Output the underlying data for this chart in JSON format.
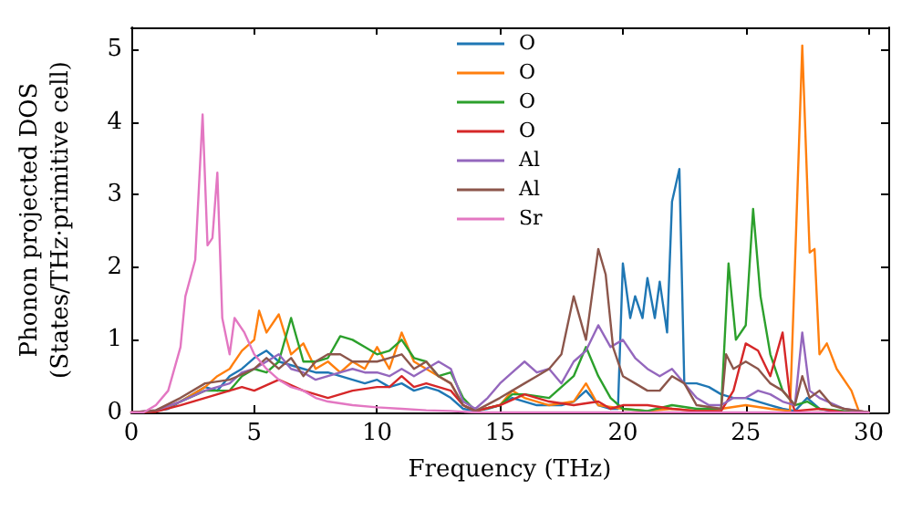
{
  "chart_data": {
    "type": "line",
    "xlabel": "Frequency (THz)",
    "ylabel": "Phonon projected DOS\n(States/THz·primitive cell)",
    "xlim": [
      0,
      30.8
    ],
    "xticks": [
      0,
      5,
      10,
      15,
      20,
      25,
      30
    ],
    "ylim": [
      0,
      5.3
    ],
    "yticks": [
      0,
      1,
      2,
      3,
      4,
      5
    ],
    "grid": false,
    "legend": "top",
    "marker": "none",
    "line_style": "solid",
    "series": [
      {
        "name": "O",
        "color": "#1f77b4",
        "x": [
          0,
          1,
          1.5,
          2,
          2.5,
          3,
          3.5,
          4,
          4.5,
          5,
          5.5,
          6,
          6.5,
          7,
          7.5,
          8,
          8.5,
          9,
          9.5,
          10,
          10.5,
          11,
          11.5,
          12,
          12.5,
          13,
          13.5,
          14,
          14.5,
          15,
          15.5,
          16,
          16.5,
          17,
          17.5,
          18,
          18.5,
          19,
          19.5,
          19.8,
          20,
          20.3,
          20.5,
          20.8,
          21,
          21.3,
          21.5,
          21.8,
          22,
          22.3,
          22.5,
          23,
          23.5,
          24,
          24.5,
          25,
          25.5,
          26,
          26.5,
          27,
          27.5,
          28,
          28.5
        ],
        "values": [
          0,
          0.02,
          0.05,
          0.15,
          0.25,
          0.35,
          0.3,
          0.5,
          0.6,
          0.75,
          0.85,
          0.7,
          0.65,
          0.6,
          0.55,
          0.55,
          0.5,
          0.45,
          0.4,
          0.45,
          0.35,
          0.4,
          0.3,
          0.35,
          0.3,
          0.2,
          0.05,
          0.02,
          0.05,
          0.1,
          0.2,
          0.15,
          0.1,
          0.1,
          0.1,
          0.15,
          0.3,
          0.1,
          0.05,
          0.05,
          2.05,
          1.3,
          1.6,
          1.3,
          1.85,
          1.3,
          1.8,
          1.1,
          2.9,
          3.35,
          0.4,
          0.4,
          0.35,
          0.25,
          0.2,
          0.2,
          0.15,
          0.1,
          0.05,
          0.02,
          0.2,
          0.05,
          0.02
        ]
      },
      {
        "name": "O",
        "color": "#ff7f0e",
        "x": [
          0,
          1,
          2,
          2.5,
          3,
          3.5,
          4,
          4.5,
          5,
          5.2,
          5.5,
          6,
          6.5,
          7,
          7.5,
          8,
          8.5,
          9,
          9.5,
          10,
          10.5,
          11,
          11.5,
          12,
          12.5,
          13,
          13.5,
          14,
          15,
          15.5,
          16,
          17,
          18,
          18.5,
          19,
          20,
          21,
          22,
          23,
          24,
          25,
          26,
          26.8,
          27,
          27.3,
          27.6,
          27.8,
          28,
          28.3,
          28.7,
          29.3,
          29.6,
          30
        ],
        "values": [
          0,
          0.02,
          0.15,
          0.25,
          0.35,
          0.5,
          0.6,
          0.85,
          1.0,
          1.4,
          1.1,
          1.35,
          0.8,
          0.95,
          0.6,
          0.7,
          0.55,
          0.7,
          0.6,
          0.9,
          0.6,
          1.1,
          0.7,
          0.6,
          0.5,
          0.4,
          0.1,
          0.02,
          0.1,
          0.3,
          0.2,
          0.1,
          0.15,
          0.4,
          0.1,
          0.05,
          0.02,
          0.05,
          0.02,
          0.05,
          0.1,
          0.05,
          0.02,
          2.0,
          5.05,
          2.2,
          2.25,
          0.8,
          0.95,
          0.6,
          0.3,
          0.02,
          0
        ]
      },
      {
        "name": "O",
        "color": "#2ca02c",
        "x": [
          2,
          3,
          4,
          4.5,
          5,
          5.5,
          6,
          6.5,
          7,
          7.5,
          8,
          8.5,
          9,
          9.5,
          10,
          10.5,
          11,
          11.5,
          12,
          12.5,
          13,
          13.5,
          14,
          15,
          15.5,
          16,
          17,
          18,
          18.5,
          19,
          19.5,
          20,
          21,
          22,
          23,
          24,
          24.3,
          24.6,
          25,
          25.3,
          25.6,
          26,
          26.5,
          27,
          27.5,
          28,
          29,
          30
        ],
        "values": [
          0.15,
          0.3,
          0.3,
          0.5,
          0.6,
          0.55,
          0.7,
          1.3,
          0.7,
          0.7,
          0.75,
          1.05,
          1.0,
          0.9,
          0.8,
          0.85,
          1.0,
          0.75,
          0.7,
          0.5,
          0.55,
          0.2,
          0.02,
          0.1,
          0.25,
          0.25,
          0.2,
          0.5,
          0.9,
          0.5,
          0.2,
          0.05,
          0.02,
          0.1,
          0.05,
          0.05,
          2.05,
          1.0,
          1.2,
          2.8,
          1.6,
          0.8,
          0.3,
          0.1,
          0.15,
          0.05,
          0.02,
          0
        ]
      },
      {
        "name": "O",
        "color": "#d62728",
        "x": [
          0,
          1,
          2,
          3,
          4,
          4.5,
          5,
          6,
          7,
          8,
          9,
          10,
          10.5,
          11,
          11.5,
          12,
          13,
          13.5,
          14,
          15,
          16,
          17,
          18,
          19,
          19.5,
          20,
          21,
          22,
          23,
          24,
          24.5,
          25,
          25.5,
          26,
          26.5,
          26.8,
          27,
          28,
          29,
          30
        ],
        "values": [
          0,
          0.01,
          0.1,
          0.2,
          0.3,
          0.35,
          0.3,
          0.45,
          0.3,
          0.2,
          0.3,
          0.35,
          0.35,
          0.5,
          0.35,
          0.4,
          0.3,
          0.1,
          0.02,
          0.1,
          0.25,
          0.15,
          0.1,
          0.15,
          0.05,
          0.1,
          0.1,
          0.05,
          0.02,
          0.02,
          0.3,
          0.95,
          0.85,
          0.5,
          1.1,
          0.2,
          0.02,
          0.05,
          0,
          0
        ]
      },
      {
        "name": "Al",
        "color": "#9467bd",
        "x": [
          0,
          1,
          2,
          3,
          4,
          4.5,
          5,
          5.5,
          6,
          6.5,
          7,
          7.5,
          8,
          8.5,
          9,
          9.5,
          10,
          10.5,
          11,
          11.5,
          12,
          12.5,
          13,
          13.5,
          14,
          14.5,
          15,
          15.5,
          16,
          16.5,
          17,
          17.5,
          18,
          18.5,
          19,
          19.5,
          20,
          20.5,
          21,
          21.5,
          22,
          22.5,
          23,
          23.5,
          24,
          24.5,
          25,
          25.5,
          26,
          26.5,
          27,
          27.3,
          27.6,
          28,
          29,
          30
        ],
        "values": [
          0,
          0.03,
          0.15,
          0.3,
          0.4,
          0.55,
          0.6,
          0.7,
          0.8,
          0.6,
          0.55,
          0.45,
          0.5,
          0.55,
          0.6,
          0.55,
          0.55,
          0.5,
          0.6,
          0.5,
          0.6,
          0.7,
          0.6,
          0.15,
          0.05,
          0.2,
          0.4,
          0.55,
          0.7,
          0.55,
          0.6,
          0.4,
          0.7,
          0.85,
          1.2,
          0.9,
          1.0,
          0.75,
          0.6,
          0.5,
          0.6,
          0.4,
          0.2,
          0.1,
          0.1,
          0.2,
          0.2,
          0.3,
          0.25,
          0.15,
          0.1,
          1.1,
          0.3,
          0.2,
          0.05,
          0
        ]
      },
      {
        "name": "Al",
        "color": "#8c564b",
        "x": [
          0,
          1,
          2,
          3,
          4,
          5,
          5.5,
          6,
          6.5,
          7,
          7.5,
          8,
          8.5,
          9,
          9.5,
          10,
          10.5,
          11,
          11.5,
          12,
          12.5,
          13,
          13.5,
          14,
          15,
          16,
          16.5,
          17,
          17.5,
          18,
          18.5,
          19,
          19.3,
          19.6,
          20,
          20.5,
          21,
          21.5,
          22,
          22.5,
          23,
          24,
          24.2,
          24.5,
          25,
          25.5,
          26,
          26.5,
          27,
          27.3,
          27.6,
          28,
          28.5,
          29,
          30
        ],
        "values": [
          0,
          0.03,
          0.2,
          0.4,
          0.45,
          0.6,
          0.75,
          0.6,
          0.75,
          0.5,
          0.7,
          0.8,
          0.8,
          0.7,
          0.7,
          0.7,
          0.75,
          0.8,
          0.6,
          0.7,
          0.5,
          0.4,
          0.1,
          0.02,
          0.2,
          0.4,
          0.5,
          0.6,
          0.8,
          1.6,
          1.0,
          2.25,
          1.9,
          0.9,
          0.5,
          0.4,
          0.3,
          0.3,
          0.5,
          0.4,
          0.1,
          0.05,
          0.8,
          0.6,
          0.7,
          0.6,
          0.4,
          0.3,
          0.1,
          0.5,
          0.2,
          0.3,
          0.1,
          0.05,
          0
        ]
      },
      {
        "name": "Sr",
        "color": "#e377c2",
        "x": [
          0,
          0.5,
          1,
          1.5,
          2,
          2.2,
          2.6,
          2.9,
          3.1,
          3.3,
          3.5,
          3.7,
          4,
          4.2,
          4.6,
          5,
          5.5,
          6,
          6.5,
          7,
          7.5,
          8,
          9,
          10,
          11,
          12,
          13,
          14,
          30
        ],
        "values": [
          0,
          0,
          0.1,
          0.3,
          0.9,
          1.6,
          2.1,
          4.1,
          2.3,
          2.4,
          3.3,
          1.3,
          0.8,
          1.3,
          1.1,
          0.8,
          0.6,
          0.45,
          0.35,
          0.3,
          0.2,
          0.15,
          0.1,
          0.07,
          0.05,
          0.03,
          0.02,
          0,
          0
        ]
      }
    ]
  }
}
